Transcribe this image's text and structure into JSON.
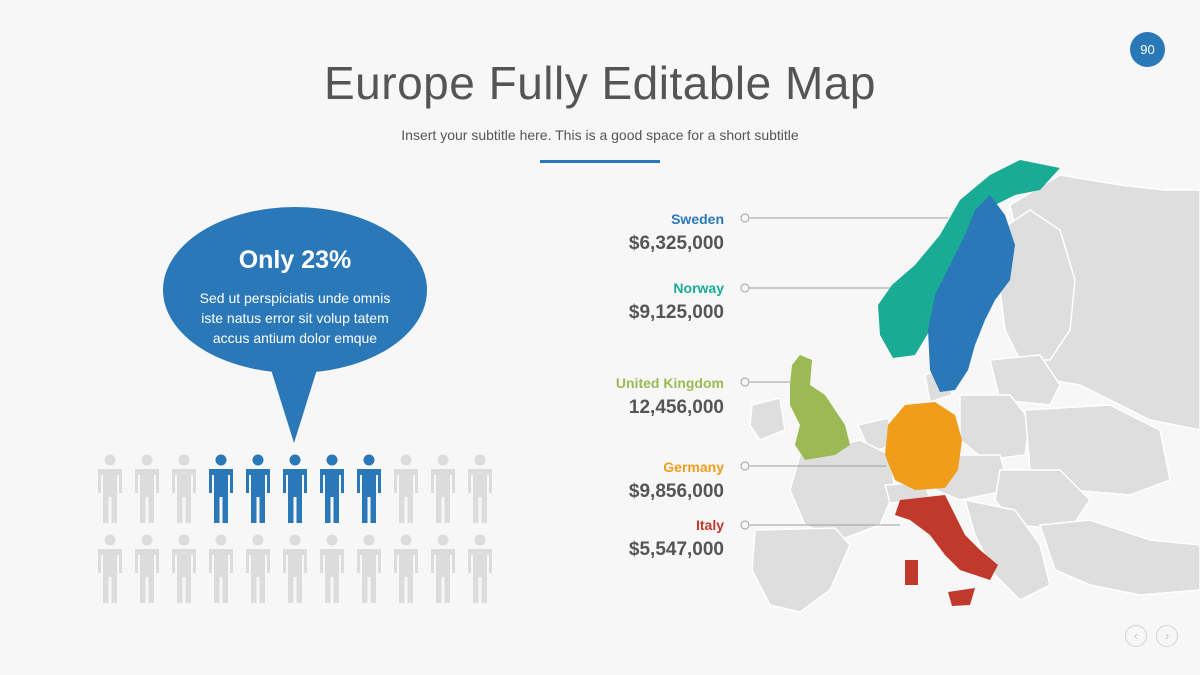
{
  "page_number": "90",
  "title": "Europe Fully Editable Map",
  "subtitle": "Insert your subtitle here. This is a good space for a short subtitle",
  "callout": {
    "headline": "Only 23%",
    "body": "Sed ut perspiciatis unde omnis iste natus error sit volup tatem accus antium dolor emque"
  },
  "people_chart": {
    "rows": 2,
    "per_row": 11,
    "highlighted": 5,
    "highlight_color": "#2a78b8",
    "base_color": "#dcdcdc"
  },
  "countries": [
    {
      "name": "Sweden",
      "value": "$6,325,000",
      "color": "#2a78b8"
    },
    {
      "name": "Norway",
      "value": "$9,125,000",
      "color": "#1aab95"
    },
    {
      "name": "United Kingdom",
      "value": "12,456,000",
      "color": "#9cba54"
    },
    {
      "name": "Germany",
      "value": "$9,856,000",
      "color": "#f19d1c"
    },
    {
      "name": "Italy",
      "value": "$5,547,000",
      "color": "#c0392b"
    }
  ],
  "colors": {
    "accent": "#2a78b8",
    "map_base": "#dedede",
    "text": "#555555"
  },
  "nav": {
    "prev_icon": "chevron-left-icon",
    "next_icon": "chevron-right-icon"
  }
}
